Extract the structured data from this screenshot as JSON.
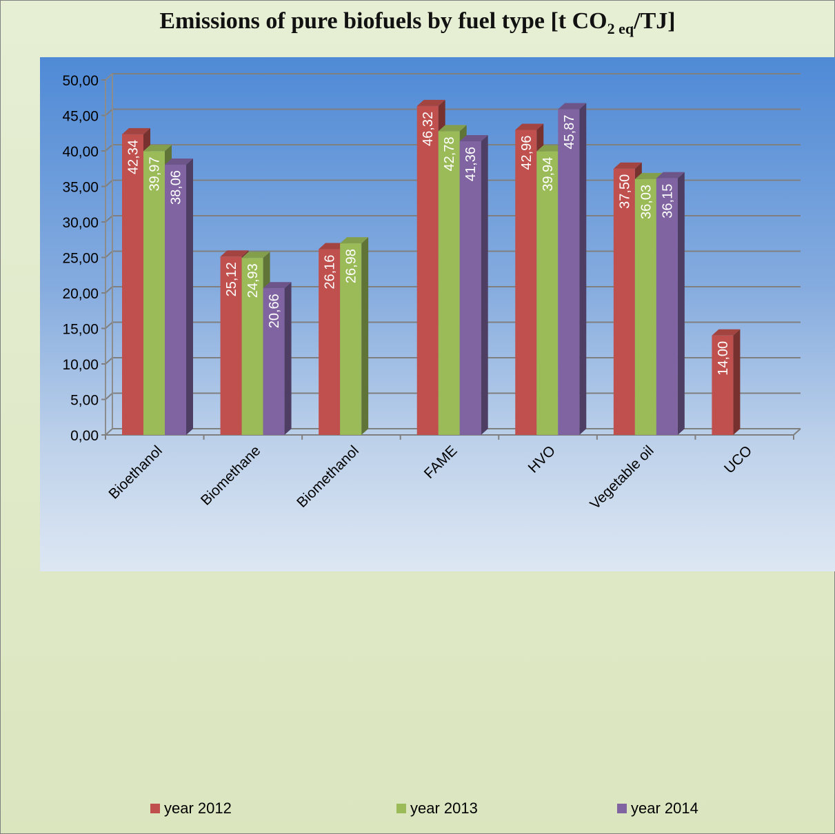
{
  "chart_data": {
    "type": "bar",
    "title_main": "Emissions of pure biofuels by fuel type [t CO",
    "title_sub": "2 eq",
    "title_end": "/TJ]",
    "xlabel": "",
    "ylabel": "",
    "ylim": [
      0,
      50
    ],
    "y_ticks": [
      "0,00",
      "5,00",
      "10,00",
      "15,00",
      "20,00",
      "25,00",
      "30,00",
      "35,00",
      "40,00",
      "45,00",
      "50,00"
    ],
    "grid": true,
    "legend_position": "bottom",
    "categories": [
      "Bioethanol",
      "Biomethane",
      "Biomethanol",
      "FAME",
      "HVO",
      "Vegetable oil",
      "UCO"
    ],
    "series": [
      {
        "name": "year 2012",
        "color": "#c0504d",
        "values": [
          42.34,
          25.12,
          26.16,
          46.32,
          42.96,
          37.5,
          14.0
        ],
        "labels": [
          "42,34",
          "25,12",
          "26,16",
          "46,32",
          "42,96",
          "37,50",
          "14,00"
        ]
      },
      {
        "name": "year 2013",
        "color": "#9bbb59",
        "values": [
          39.97,
          24.93,
          26.98,
          42.78,
          39.94,
          36.03,
          null
        ],
        "labels": [
          "39,97",
          "24,93",
          "26,98",
          "42,78",
          "39,94",
          "36,03",
          ""
        ]
      },
      {
        "name": "year 2014",
        "color": "#8064a2",
        "values": [
          38.06,
          20.66,
          null,
          41.36,
          45.87,
          36.15,
          null
        ],
        "labels": [
          "38,06",
          "20,66",
          "",
          "41,36",
          "45,87",
          "36,15",
          ""
        ]
      }
    ]
  }
}
